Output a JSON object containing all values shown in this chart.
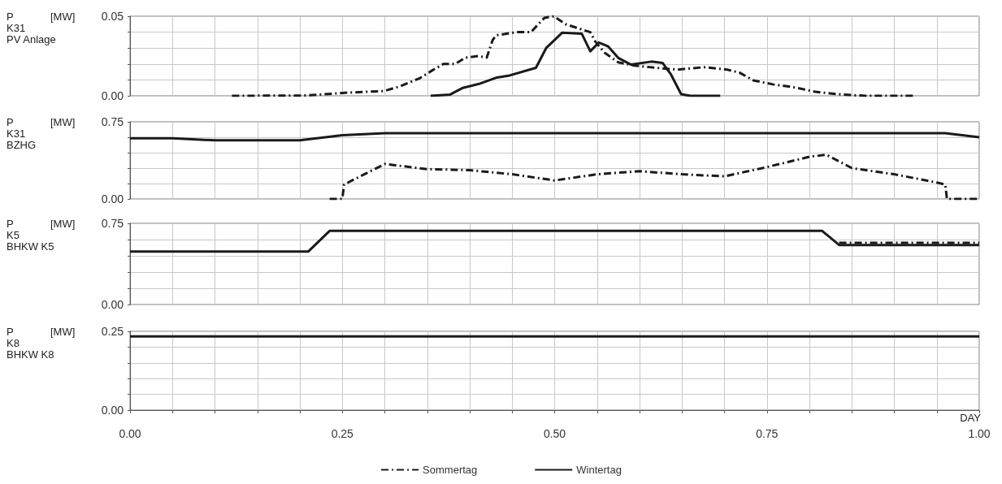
{
  "chart_data": [
    {
      "type": "line",
      "ylabel": "P [MW]\nK31\nPV Anlage",
      "xlim": [
        0,
        1
      ],
      "xticks": [
        {
          "value": 0,
          "label": null
        },
        {
          "value": 0.05,
          "label": null
        },
        {
          "value": 0.1,
          "label": null
        },
        {
          "value": 0.15,
          "label": null
        },
        {
          "value": 0.2,
          "label": null
        },
        {
          "value": 0.25,
          "label": null
        },
        {
          "value": 0.3,
          "label": null
        },
        {
          "value": 0.35,
          "label": null
        },
        {
          "value": 0.4,
          "label": null
        },
        {
          "value": 0.45,
          "label": null
        },
        {
          "value": 0.5,
          "label": null
        },
        {
          "value": 0.55,
          "label": null
        },
        {
          "value": 0.6,
          "label": null
        },
        {
          "value": 0.65,
          "label": null
        },
        {
          "value": 0.7,
          "label": null
        },
        {
          "value": 0.75,
          "label": null
        },
        {
          "value": 0.8,
          "label": null
        },
        {
          "value": 0.85,
          "label": null
        },
        {
          "value": 0.9,
          "label": null
        },
        {
          "value": 0.95,
          "label": null
        },
        {
          "value": 1,
          "label": null
        }
      ],
      "ylim": [
        0,
        0.05
      ],
      "yticks": [
        {
          "value": 0,
          "label": "0.00"
        },
        {
          "value": 0.01,
          "label": null
        },
        {
          "value": 0.02,
          "label": null
        },
        {
          "value": 0.03,
          "label": null
        },
        {
          "value": 0.04,
          "label": null
        },
        {
          "value": 0.05,
          "label": "0.05"
        }
      ],
      "grid": true,
      "tick_labels": "y",
      "marker": "none",
      "series": [
        {
          "color": "#1a1a1a",
          "line_style": "dashed",
          "x": [
            0.12,
            0.207,
            0.256,
            0.299,
            0.318,
            0.341,
            0.356,
            0.369,
            0.383,
            0.395,
            0.41,
            0.42,
            0.427,
            0.431,
            0.455,
            0.472,
            0.488,
            0.499,
            0.513,
            0.542,
            0.548,
            0.559,
            0.575,
            0.594,
            0.621,
            0.645,
            0.676,
            0.703,
            0.718,
            0.734,
            0.757,
            0.784,
            0.807,
            0.838,
            0.866,
            0.924
          ],
          "values": [
            0,
            0.0002,
            0.002,
            0.003,
            0.006,
            0.011,
            0.016,
            0.02,
            0.02,
            0.024,
            0.025,
            0.024,
            0.035,
            0.038,
            0.04,
            0.04,
            0.049,
            0.05,
            0.045,
            0.04,
            0.034,
            0.027,
            0.021,
            0.019,
            0.0175,
            0.0165,
            0.018,
            0.0165,
            0.0145,
            0.0097,
            0.0072,
            0.0052,
            0.0025,
            0.0008,
            0,
            0
          ]
        },
        {
          "color": "#1a1a1a",
          "line_style": "solid",
          "x": [
            0.354,
            0.377,
            0.392,
            0.411,
            0.432,
            0.447,
            0.478,
            0.49,
            0.509,
            0.532,
            0.542,
            0.552,
            0.563,
            0.575,
            0.59,
            0.614,
            0.627,
            0.637,
            0.649,
            0.66,
            0.695
          ],
          "values": [
            0,
            0.0008,
            0.005,
            0.0075,
            0.0115,
            0.0128,
            0.0176,
            0.03,
            0.0397,
            0.039,
            0.028,
            0.0335,
            0.031,
            0.0238,
            0.0196,
            0.0215,
            0.0207,
            0.0134,
            0.001,
            0,
            0
          ]
        }
      ]
    },
    {
      "type": "line",
      "ylabel": "P [MW]\nK31\nBZHG",
      "xlim": [
        0,
        1
      ],
      "xticks": [
        {
          "value": 0,
          "label": null
        },
        {
          "value": 0.05,
          "label": null
        },
        {
          "value": 0.1,
          "label": null
        },
        {
          "value": 0.15,
          "label": null
        },
        {
          "value": 0.2,
          "label": null
        },
        {
          "value": 0.25,
          "label": null
        },
        {
          "value": 0.3,
          "label": null
        },
        {
          "value": 0.35,
          "label": null
        },
        {
          "value": 0.4,
          "label": null
        },
        {
          "value": 0.45,
          "label": null
        },
        {
          "value": 0.5,
          "label": null
        },
        {
          "value": 0.55,
          "label": null
        },
        {
          "value": 0.6,
          "label": null
        },
        {
          "value": 0.65,
          "label": null
        },
        {
          "value": 0.7,
          "label": null
        },
        {
          "value": 0.75,
          "label": null
        },
        {
          "value": 0.8,
          "label": null
        },
        {
          "value": 0.85,
          "label": null
        },
        {
          "value": 0.9,
          "label": null
        },
        {
          "value": 0.95,
          "label": null
        },
        {
          "value": 1,
          "label": null
        }
      ],
      "ylim": [
        0,
        0.75
      ],
      "yticks": [
        {
          "value": 0,
          "label": "0.00"
        },
        {
          "value": 0.15,
          "label": null
        },
        {
          "value": 0.3,
          "label": null
        },
        {
          "value": 0.45,
          "label": null
        },
        {
          "value": 0.6,
          "label": null
        },
        {
          "value": 0.75,
          "label": "0.75"
        }
      ],
      "grid": true,
      "tick_labels": "y",
      "marker": "none",
      "series": [
        {
          "color": "#1a1a1a",
          "line_style": "dashed",
          "x": [
            0.235,
            0.25,
            0.252,
            0.3,
            0.35,
            0.4,
            0.45,
            0.5,
            0.55,
            0.6,
            0.65,
            0.7,
            0.75,
            0.8,
            0.82,
            0.85,
            0.9,
            0.95,
            0.96,
            0.962,
            1
          ],
          "values": [
            0,
            0,
            0.14,
            0.34,
            0.29,
            0.28,
            0.24,
            0.18,
            0.24,
            0.27,
            0.24,
            0.22,
            0.31,
            0.41,
            0.43,
            0.3,
            0.24,
            0.16,
            0.14,
            0,
            0
          ]
        },
        {
          "color": "#1a1a1a",
          "line_style": "solid",
          "x": [
            0,
            0.05,
            0.1,
            0.2,
            0.22,
            0.25,
            0.3,
            0.96,
            1
          ],
          "values": [
            0.59,
            0.59,
            0.57,
            0.57,
            0.59,
            0.62,
            0.64,
            0.64,
            0.6
          ]
        }
      ]
    },
    {
      "type": "line",
      "ylabel": "P [MW]\nK5\nBHKW K5",
      "xlim": [
        0,
        1
      ],
      "xticks": [
        {
          "value": 0,
          "label": null
        },
        {
          "value": 0.05,
          "label": null
        },
        {
          "value": 0.1,
          "label": null
        },
        {
          "value": 0.15,
          "label": null
        },
        {
          "value": 0.2,
          "label": null
        },
        {
          "value": 0.25,
          "label": null
        },
        {
          "value": 0.3,
          "label": null
        },
        {
          "value": 0.35,
          "label": null
        },
        {
          "value": 0.4,
          "label": null
        },
        {
          "value": 0.45,
          "label": null
        },
        {
          "value": 0.5,
          "label": null
        },
        {
          "value": 0.55,
          "label": null
        },
        {
          "value": 0.6,
          "label": null
        },
        {
          "value": 0.65,
          "label": null
        },
        {
          "value": 0.7,
          "label": null
        },
        {
          "value": 0.75,
          "label": null
        },
        {
          "value": 0.8,
          "label": null
        },
        {
          "value": 0.85,
          "label": null
        },
        {
          "value": 0.9,
          "label": null
        },
        {
          "value": 0.95,
          "label": null
        },
        {
          "value": 1,
          "label": null
        }
      ],
      "ylim": [
        0,
        0.75
      ],
      "yticks": [
        {
          "value": 0,
          "label": "0.00"
        },
        {
          "value": 0.15,
          "label": null
        },
        {
          "value": 0.3,
          "label": null
        },
        {
          "value": 0.45,
          "label": null
        },
        {
          "value": 0.6,
          "label": null
        },
        {
          "value": 0.75,
          "label": "0.75"
        }
      ],
      "grid": true,
      "tick_labels": "y",
      "legend": "bottom",
      "marker": "none",
      "series": [
        {
          "name": "Sommertag",
          "color": "#1a1a1a",
          "line_style": "dashed",
          "x": [
            0.835,
            1
          ],
          "values": [
            0.57,
            0.57
          ]
        },
        {
          "name": "Wintertag",
          "color": "#1a1a1a",
          "line_style": "solid",
          "x": [
            0,
            0.21,
            0.235,
            0.815,
            0.835,
            1
          ],
          "values": [
            0.49,
            0.49,
            0.68,
            0.68,
            0.55,
            0.55
          ]
        }
      ]
    },
    {
      "type": "line",
      "ylabel": "P [MW]\nK8\nBHKW K8",
      "xlabel": "DAY",
      "xlim": [
        0,
        1
      ],
      "xticks": [
        {
          "value": 0,
          "label": "0.00"
        },
        {
          "value": 0.05,
          "label": null
        },
        {
          "value": 0.1,
          "label": null
        },
        {
          "value": 0.15,
          "label": null
        },
        {
          "value": 0.2,
          "label": null
        },
        {
          "value": 0.25,
          "label": "0.25"
        },
        {
          "value": 0.3,
          "label": null
        },
        {
          "value": 0.35,
          "label": null
        },
        {
          "value": 0.4,
          "label": null
        },
        {
          "value": 0.45,
          "label": null
        },
        {
          "value": 0.5,
          "label": "0.50"
        },
        {
          "value": 0.55,
          "label": null
        },
        {
          "value": 0.6,
          "label": null
        },
        {
          "value": 0.65,
          "label": null
        },
        {
          "value": 0.7,
          "label": null
        },
        {
          "value": 0.75,
          "label": "0.75"
        },
        {
          "value": 0.8,
          "label": null
        },
        {
          "value": 0.85,
          "label": null
        },
        {
          "value": 0.9,
          "label": null
        },
        {
          "value": 0.95,
          "label": null
        },
        {
          "value": 1,
          "label": "1.00"
        }
      ],
      "ylim": [
        0,
        0.25
      ],
      "yticks": [
        {
          "value": 0,
          "label": "0.00"
        },
        {
          "value": 0.05,
          "label": null
        },
        {
          "value": 0.1,
          "label": null
        },
        {
          "value": 0.15,
          "label": null
        },
        {
          "value": 0.2,
          "label": null
        },
        {
          "value": 0.25,
          "label": "0.25"
        }
      ],
      "grid": true,
      "marker": "none",
      "series": [
        {
          "color": "#1a1a1a",
          "line_style": "solid",
          "x": [
            0,
            1
          ],
          "values": [
            0.234,
            0.234
          ]
        }
      ]
    }
  ]
}
